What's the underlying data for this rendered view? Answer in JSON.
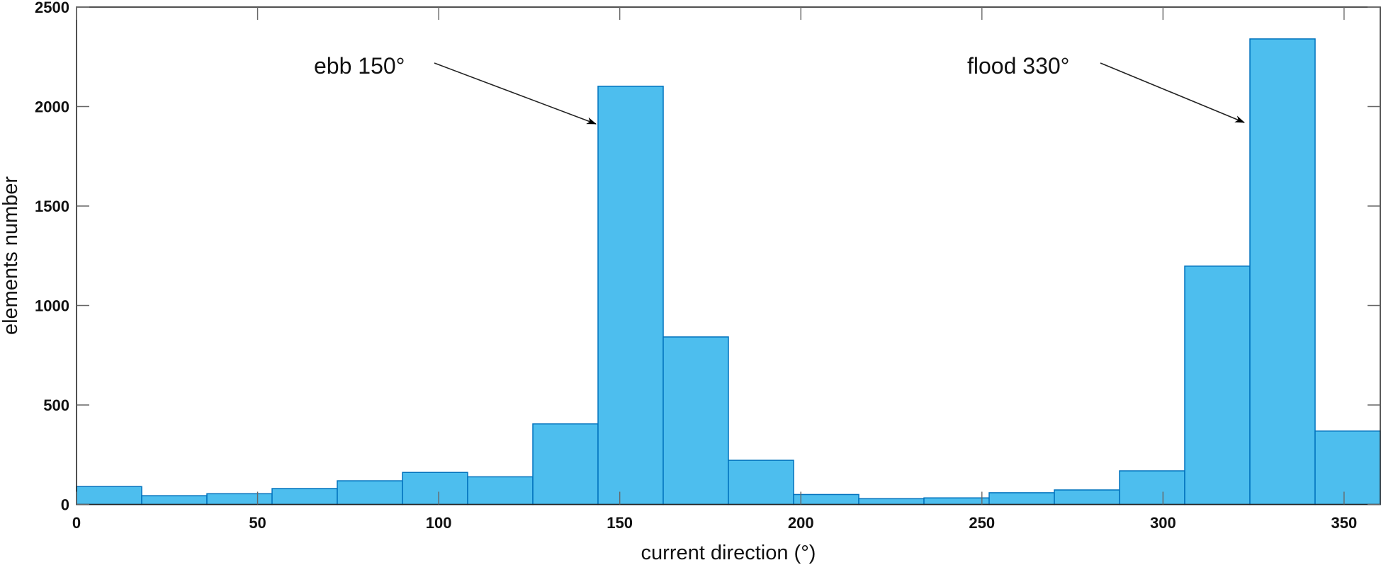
{
  "chart_data": {
    "type": "bar",
    "subtype": "histogram",
    "title": "",
    "xlabel": "current direction (°)",
    "ylabel": "elements number",
    "xlim": [
      0,
      360
    ],
    "ylim": [
      0,
      2500
    ],
    "bin_width": 18,
    "bin_edges": [
      0,
      18,
      36,
      54,
      72,
      90,
      108,
      126,
      144,
      162,
      180,
      198,
      216,
      234,
      252,
      270,
      288,
      306,
      324,
      342,
      360
    ],
    "values": [
      90,
      44,
      54,
      80,
      119,
      161,
      139,
      405,
      2102,
      842,
      222,
      50,
      29,
      33,
      59,
      73,
      169,
      1198,
      2340,
      369
    ],
    "x_ticks": [
      0,
      50,
      100,
      150,
      200,
      250,
      300,
      350
    ],
    "y_ticks": [
      0,
      500,
      1000,
      1500,
      2000,
      2500
    ],
    "grid": false,
    "legend": null,
    "annotations": [
      {
        "text": "ebb 150°",
        "points_to_bin": 8,
        "points_to_value": 2102
      },
      {
        "text": "flood 330°",
        "points_to_bin": 18,
        "points_to_value": 2340
      }
    ],
    "colors": {
      "bar_fill": "#4DBEEE",
      "bar_edge": "#0072BD",
      "axis": "#262626"
    }
  }
}
